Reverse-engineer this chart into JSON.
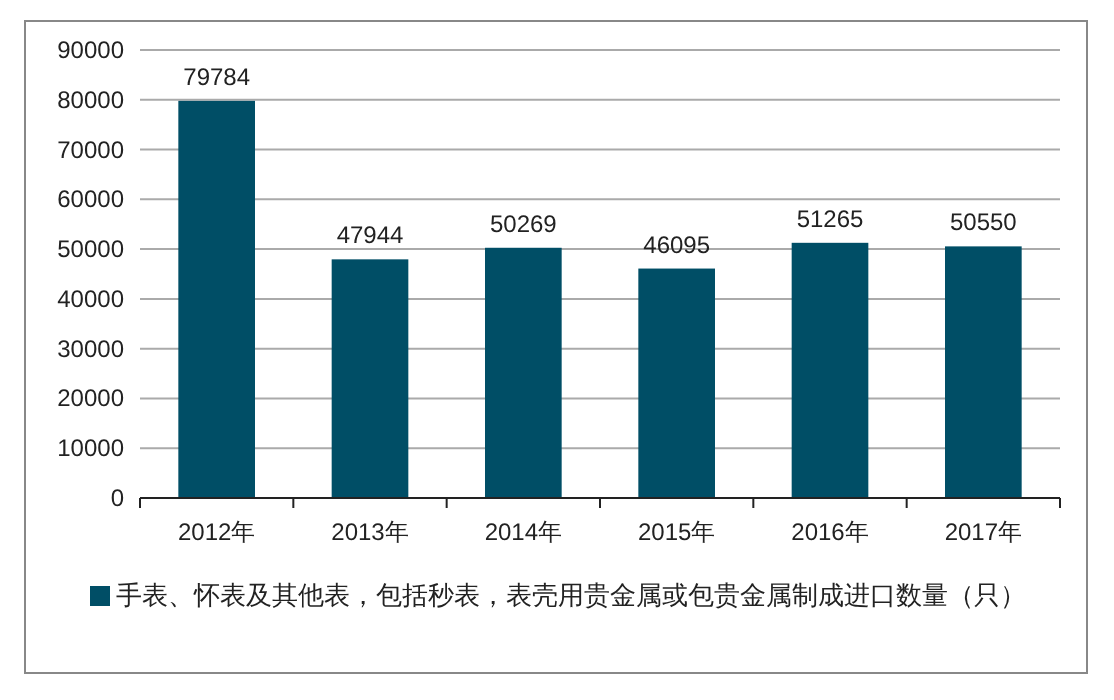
{
  "chart_data": {
    "type": "bar",
    "categories": [
      "2012年",
      "2013年",
      "2014年",
      "2015年",
      "2016年",
      "2017年"
    ],
    "series": [
      {
        "name": "手表、怀表及其他表，包括秒表，表壳用贵金属或包贵金属制成进口数量（只）",
        "color": "#004e66",
        "values": [
          79784,
          47944,
          50269,
          46095,
          51265,
          50550
        ]
      }
    ],
    "ylim": [
      0,
      90000
    ],
    "yticks": [
      0,
      10000,
      20000,
      30000,
      40000,
      50000,
      60000,
      70000,
      80000,
      90000
    ],
    "grid": "y",
    "legend": "bottom",
    "data_labels": true
  }
}
